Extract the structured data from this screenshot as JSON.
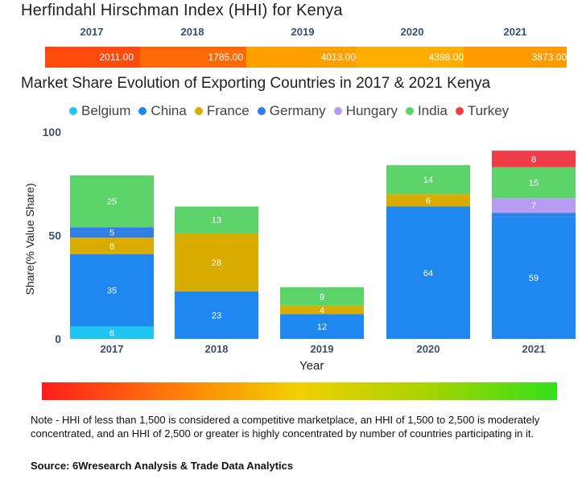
{
  "hhi": {
    "title": "Herfindahl Hirschman Index (HHI) for Kenya",
    "years": [
      "2017",
      "2018",
      "2019",
      "2020",
      "2021"
    ],
    "values": [
      "2011.00",
      "1785.00",
      "4013.00",
      "4398.00",
      "3873.00"
    ],
    "colors": [
      "#ff4a0d",
      "#ff6a08",
      "#ff9f00",
      "#ffad00",
      "#ff9a00"
    ]
  },
  "chart_data": {
    "type": "bar",
    "stacked": true,
    "title": "Market Share Evolution of Exporting Countries in 2017 & 2021 Kenya",
    "xlabel": "Year",
    "ylabel": "Share(% Value Share)",
    "ylim": [
      0,
      100
    ],
    "yticks": [
      "0",
      "50",
      "100"
    ],
    "categories": [
      "2017",
      "2018",
      "2019",
      "2020",
      "2021"
    ],
    "series": [
      {
        "name": "Belgium",
        "color": "#1fc7f0",
        "values": [
          6,
          0,
          0,
          0,
          0
        ],
        "labels": [
          "6",
          "",
          "",
          "",
          ""
        ]
      },
      {
        "name": "China",
        "color": "#1e88f0",
        "values": [
          35,
          23,
          12,
          64,
          59
        ],
        "labels": [
          "35",
          "23",
          "12",
          "64",
          "59"
        ]
      },
      {
        "name": "France",
        "color": "#d9ac00",
        "values": [
          8,
          28,
          4,
          6,
          0
        ],
        "labels": [
          "8",
          "28",
          "4",
          "6",
          ""
        ]
      },
      {
        "name": "Germany",
        "color": "#2f7fe6",
        "values": [
          5,
          0,
          0,
          0,
          2
        ],
        "labels": [
          "5",
          "",
          "",
          "",
          ""
        ]
      },
      {
        "name": "Hungary",
        "color": "#b69cf0",
        "values": [
          0,
          0,
          0,
          0,
          7
        ],
        "labels": [
          "",
          "",
          "",
          "",
          "7"
        ]
      },
      {
        "name": "India",
        "color": "#5dd46a",
        "values": [
          25,
          13,
          9,
          14,
          15
        ],
        "labels": [
          "25",
          "13",
          "9",
          "14",
          "15"
        ]
      },
      {
        "name": "Turkey",
        "color": "#f03c46",
        "values": [
          0,
          0,
          0,
          0,
          8
        ],
        "labels": [
          "",
          "",
          "",
          "",
          "8"
        ]
      }
    ],
    "legend_position": "top"
  },
  "note": "Note - HHI of less than 1,500 is considered a competitive marketplace, an HHI of 1,500 to 2,500 is moderately concentrated, and an HHI of 2,500 or greater is highly concentrated by number of countries participating in it.",
  "source": "Source: 6Wresearch Analysis & Trade Data Analytics"
}
